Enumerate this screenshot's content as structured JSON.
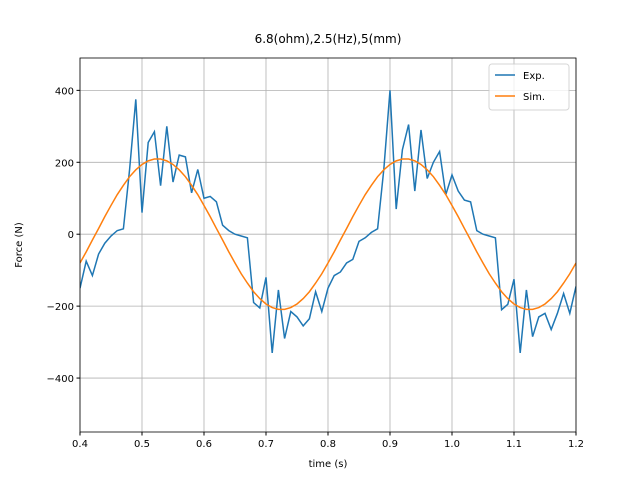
{
  "chart_data": {
    "type": "line",
    "title": "6.8(ohm),2.5(Hz),5(mm)",
    "xlabel": "time (s)",
    "ylabel": "Force (N)",
    "x": [
      0.4,
      0.41,
      0.42,
      0.43,
      0.44,
      0.45,
      0.46,
      0.47,
      0.48,
      0.49,
      0.5,
      0.51,
      0.52,
      0.53,
      0.54,
      0.55,
      0.56,
      0.57,
      0.58,
      0.59,
      0.6,
      0.61,
      0.62,
      0.63,
      0.64,
      0.65,
      0.66,
      0.67,
      0.68,
      0.69,
      0.7,
      0.71,
      0.72,
      0.73,
      0.74,
      0.75,
      0.76,
      0.77,
      0.78,
      0.79,
      0.8,
      0.81,
      0.82,
      0.83,
      0.84,
      0.85,
      0.86,
      0.87,
      0.88,
      0.89,
      0.9,
      0.91,
      0.92,
      0.93,
      0.94,
      0.95,
      0.96,
      0.97,
      0.98,
      0.99,
      1.0,
      1.01,
      1.02,
      1.03,
      1.04,
      1.05,
      1.06,
      1.07,
      1.08,
      1.09,
      1.1,
      1.11,
      1.12,
      1.13,
      1.14,
      1.15,
      1.16,
      1.17,
      1.18,
      1.19,
      1.2
    ],
    "series": [
      {
        "name": "Exp.",
        "color": "#1f77b4",
        "values": [
          -150,
          -75,
          -115,
          -55,
          -25,
          -5,
          10,
          15,
          180,
          375,
          60,
          255,
          285,
          135,
          300,
          145,
          220,
          215,
          115,
          180,
          100,
          105,
          90,
          25,
          10,
          0,
          -5,
          -10,
          -190,
          -205,
          -120,
          -330,
          -155,
          -290,
          -215,
          -230,
          -255,
          -235,
          -160,
          -215,
          -150,
          -115,
          -105,
          -80,
          -70,
          -20,
          -10,
          5,
          15,
          180,
          400,
          70,
          235,
          305,
          120,
          290,
          155,
          200,
          230,
          110,
          165,
          120,
          95,
          90,
          10,
          0,
          -5,
          -10,
          -210,
          -195,
          -125,
          -330,
          -155,
          -285,
          -230,
          -220,
          -265,
          -220,
          -165,
          -220,
          -145
        ]
      },
      {
        "name": "Sim.",
        "color": "#ff7f0e",
        "values": [
          -80,
          -49,
          -16,
          16,
          49,
          80,
          110,
          136,
          160,
          179,
          194,
          204,
          209,
          209,
          204,
          194,
          179,
          160,
          136,
          110,
          80,
          49,
          16,
          -16,
          -49,
          -80,
          -110,
          -136,
          -160,
          -179,
          -194,
          -204,
          -209,
          -209,
          -204,
          -194,
          -179,
          -160,
          -136,
          -110,
          -80,
          -49,
          -16,
          16,
          49,
          80,
          110,
          136,
          160,
          179,
          194,
          204,
          209,
          209,
          204,
          194,
          179,
          160,
          136,
          110,
          80,
          49,
          16,
          -16,
          -49,
          -80,
          -110,
          -136,
          -160,
          -179,
          -194,
          -204,
          -209,
          -209,
          -204,
          -194,
          -179,
          -160,
          -136,
          -110,
          -80
        ]
      }
    ],
    "xlim": [
      0.4,
      1.2
    ],
    "ylim": [
      -550,
      490
    ],
    "xticks": [
      0.4,
      0.5,
      0.6,
      0.7,
      0.8,
      0.9,
      {
        "value": 1,
        "label": "1.0"
      },
      1.1,
      1.2
    ],
    "yticks": [
      {
        "value": -400,
        "label": "−400"
      },
      {
        "value": -200,
        "label": "−200"
      },
      0,
      200,
      400
    ],
    "grid": true,
    "legend": "upper right"
  }
}
